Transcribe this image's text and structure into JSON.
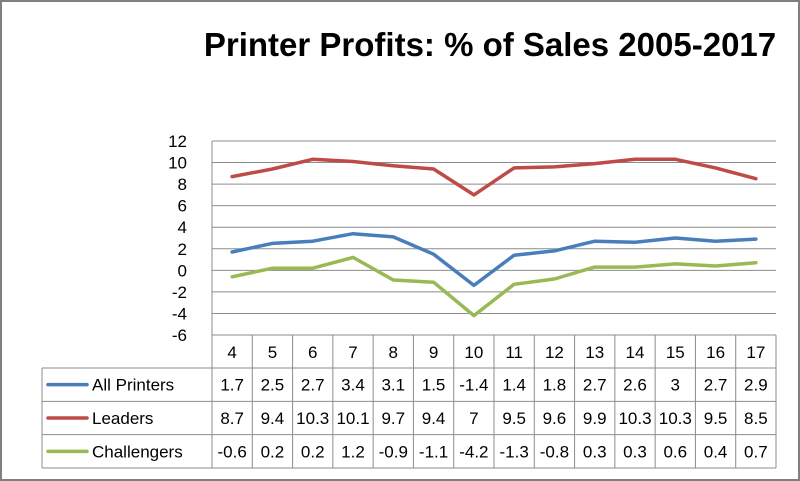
{
  "chart_data": {
    "type": "line",
    "title": "Printer Profits: % of Sales 2005-2017",
    "categories": [
      "4",
      "5",
      "6",
      "7",
      "8",
      "9",
      "10",
      "11",
      "12",
      "13",
      "14",
      "15",
      "16",
      "17"
    ],
    "ylim": [
      -6,
      12
    ],
    "yticks": [
      "12",
      "10",
      "8",
      "6",
      "4",
      "2",
      "0",
      "-2",
      "-4",
      "-6"
    ],
    "grid": true,
    "legend": "data-table",
    "series": [
      {
        "name": "All Printers",
        "color": "#4a7ebb",
        "values": [
          1.7,
          2.5,
          2.7,
          3.4,
          3.1,
          1.5,
          -1.4,
          1.4,
          1.8,
          2.7,
          2.6,
          3,
          2.7,
          2.9
        ],
        "labels": [
          "1.7",
          "2.5",
          "2.7",
          "3.4",
          "3.1",
          "1.5",
          "-1.4",
          "1.4",
          "1.8",
          "2.7",
          "2.6",
          "3",
          "2.7",
          "2.9"
        ]
      },
      {
        "name": "Leaders",
        "color": "#be4b48",
        "values": [
          8.7,
          9.4,
          10.3,
          10.1,
          9.7,
          9.4,
          7,
          9.5,
          9.6,
          9.9,
          10.3,
          10.3,
          9.5,
          8.5
        ],
        "labels": [
          "8.7",
          "9.4",
          "10.3",
          "10.1",
          "9.7",
          "9.4",
          "7",
          "9.5",
          "9.6",
          "9.9",
          "10.3",
          "10.3",
          "9.5",
          "8.5"
        ]
      },
      {
        "name": "Challengers",
        "color": "#98b954",
        "values": [
          -0.6,
          0.2,
          0.2,
          1.2,
          -0.9,
          -1.1,
          -4.2,
          -1.3,
          -0.8,
          0.3,
          0.3,
          0.6,
          0.4,
          0.7
        ],
        "labels": [
          "-0.6",
          "0.2",
          "0.2",
          "1.2",
          "-0.9",
          "-1.1",
          "-4.2",
          "-1.3",
          "-0.8",
          "0.3",
          "0.3",
          "0.6",
          "0.4",
          "0.7"
        ]
      }
    ]
  }
}
